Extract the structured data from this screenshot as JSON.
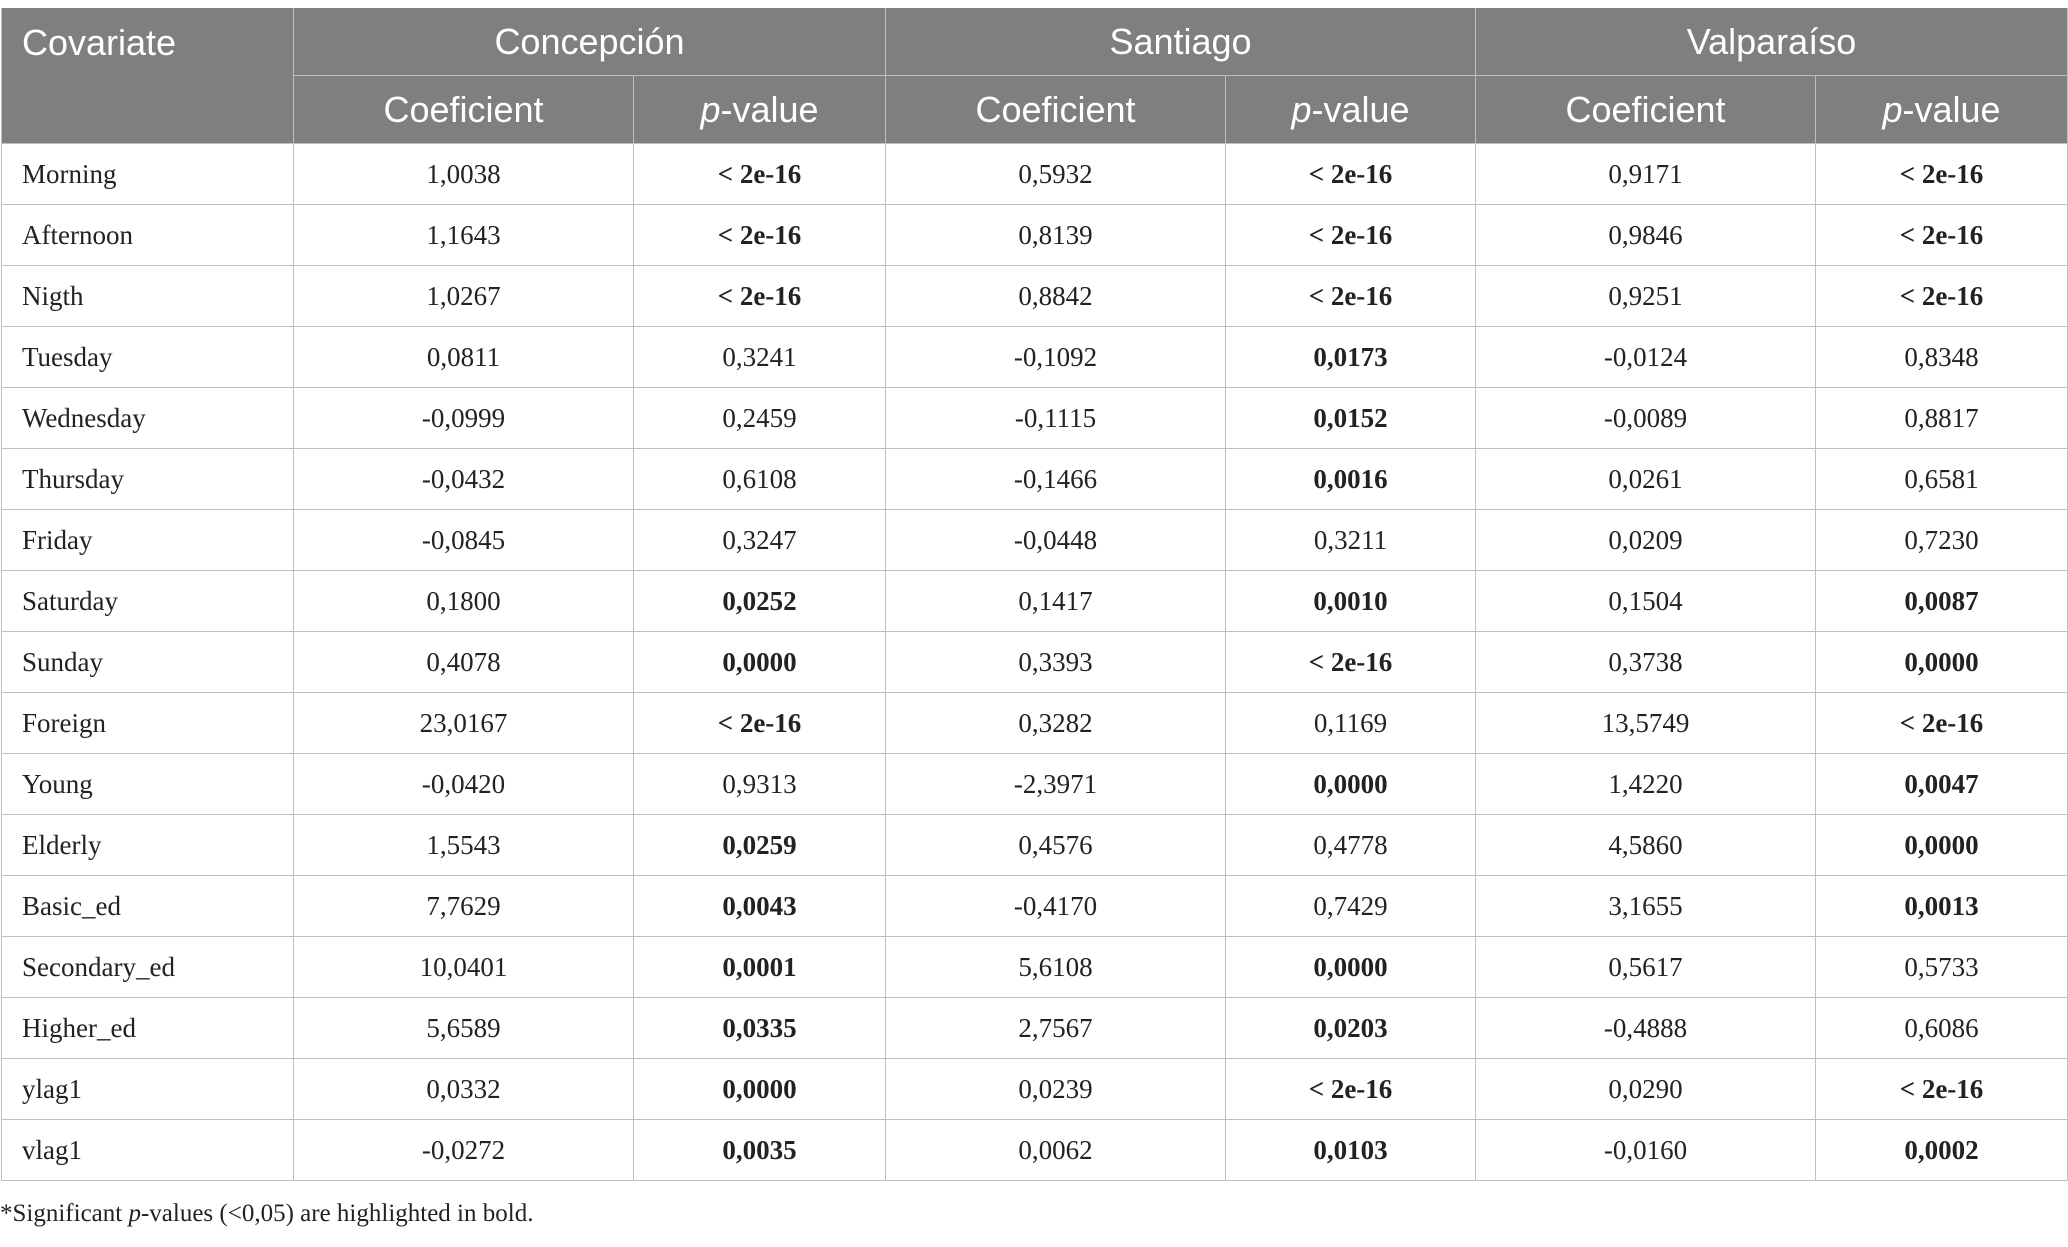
{
  "header": {
    "covariate": "Covariate",
    "cities": [
      "Concepción",
      "Santiago",
      "Valparaíso"
    ],
    "coef": "Coeficient",
    "p_italic": "p",
    "p_rest": "-value"
  },
  "rows": [
    {
      "name": "Morning",
      "vals": [
        "1,0038",
        "< 2e-16",
        "0,5932",
        "< 2e-16",
        "0,9171",
        "< 2e-16"
      ],
      "bold": [
        false,
        true,
        false,
        true,
        false,
        true
      ]
    },
    {
      "name": "Afternoon",
      "vals": [
        "1,1643",
        "< 2e-16",
        "0,8139",
        "< 2e-16",
        "0,9846",
        "< 2e-16"
      ],
      "bold": [
        false,
        true,
        false,
        true,
        false,
        true
      ]
    },
    {
      "name": "Nigth",
      "vals": [
        "1,0267",
        "< 2e-16",
        "0,8842",
        "< 2e-16",
        "0,9251",
        "< 2e-16"
      ],
      "bold": [
        false,
        true,
        false,
        true,
        false,
        true
      ]
    },
    {
      "name": "Tuesday",
      "vals": [
        "0,0811",
        "0,3241",
        "-0,1092",
        "0,0173",
        "-0,0124",
        "0,8348"
      ],
      "bold": [
        false,
        false,
        false,
        true,
        false,
        false
      ]
    },
    {
      "name": "Wednesday",
      "vals": [
        "-0,0999",
        "0,2459",
        "-0,1115",
        "0,0152",
        "-0,0089",
        "0,8817"
      ],
      "bold": [
        false,
        false,
        false,
        true,
        false,
        false
      ]
    },
    {
      "name": "Thursday",
      "vals": [
        "-0,0432",
        "0,6108",
        "-0,1466",
        "0,0016",
        "0,0261",
        "0,6581"
      ],
      "bold": [
        false,
        false,
        false,
        true,
        false,
        false
      ]
    },
    {
      "name": "Friday",
      "vals": [
        "-0,0845",
        "0,3247",
        "-0,0448",
        "0,3211",
        "0,0209",
        "0,7230"
      ],
      "bold": [
        false,
        false,
        false,
        false,
        false,
        false
      ]
    },
    {
      "name": "Saturday",
      "vals": [
        "0,1800",
        "0,0252",
        "0,1417",
        "0,0010",
        "0,1504",
        "0,0087"
      ],
      "bold": [
        false,
        true,
        false,
        true,
        false,
        true
      ]
    },
    {
      "name": "Sunday",
      "vals": [
        "0,4078",
        "0,0000",
        "0,3393",
        "< 2e-16",
        "0,3738",
        "0,0000"
      ],
      "bold": [
        false,
        true,
        false,
        true,
        false,
        true
      ]
    },
    {
      "name": "Foreign",
      "vals": [
        "23,0167",
        "< 2e-16",
        "0,3282",
        "0,1169",
        "13,5749",
        "< 2e-16"
      ],
      "bold": [
        false,
        true,
        false,
        false,
        false,
        true
      ]
    },
    {
      "name": "Young",
      "vals": [
        "-0,0420",
        "0,9313",
        "-2,3971",
        "0,0000",
        "1,4220",
        "0,0047"
      ],
      "bold": [
        false,
        false,
        false,
        true,
        false,
        true
      ]
    },
    {
      "name": "Elderly",
      "vals": [
        "1,5543",
        "0,0259",
        "0,4576",
        "0,4778",
        "4,5860",
        "0,0000"
      ],
      "bold": [
        false,
        true,
        false,
        false,
        false,
        true
      ]
    },
    {
      "name": "Basic_ed",
      "vals": [
        "7,7629",
        "0,0043",
        "-0,4170",
        "0,7429",
        "3,1655",
        "0,0013"
      ],
      "bold": [
        false,
        true,
        false,
        false,
        false,
        true
      ]
    },
    {
      "name": "Secondary_ed",
      "vals": [
        "10,0401",
        "0,0001",
        "5,6108",
        "0,0000",
        "0,5617",
        "0,5733"
      ],
      "bold": [
        false,
        true,
        false,
        true,
        false,
        false
      ]
    },
    {
      "name": "Higher_ed",
      "vals": [
        "5,6589",
        "0,0335",
        "2,7567",
        "0,0203",
        "-0,4888",
        "0,6086"
      ],
      "bold": [
        false,
        true,
        false,
        true,
        false,
        false
      ]
    },
    {
      "name": "ylag1",
      "vals": [
        "0,0332",
        "0,0000",
        "0,0239",
        "< 2e-16",
        "0,0290",
        "< 2e-16"
      ],
      "bold": [
        false,
        true,
        false,
        true,
        false,
        true
      ]
    },
    {
      "name": "vlag1",
      "vals": [
        "-0,0272",
        "0,0035",
        "0,0062",
        "0,0103",
        "-0,0160",
        "0,0002"
      ],
      "bold": [
        false,
        true,
        false,
        true,
        false,
        true
      ]
    }
  ],
  "footnote": {
    "pre": "*Significant ",
    "italic": "p",
    "post": "-values (<0,05) are highlighted in bold."
  }
}
